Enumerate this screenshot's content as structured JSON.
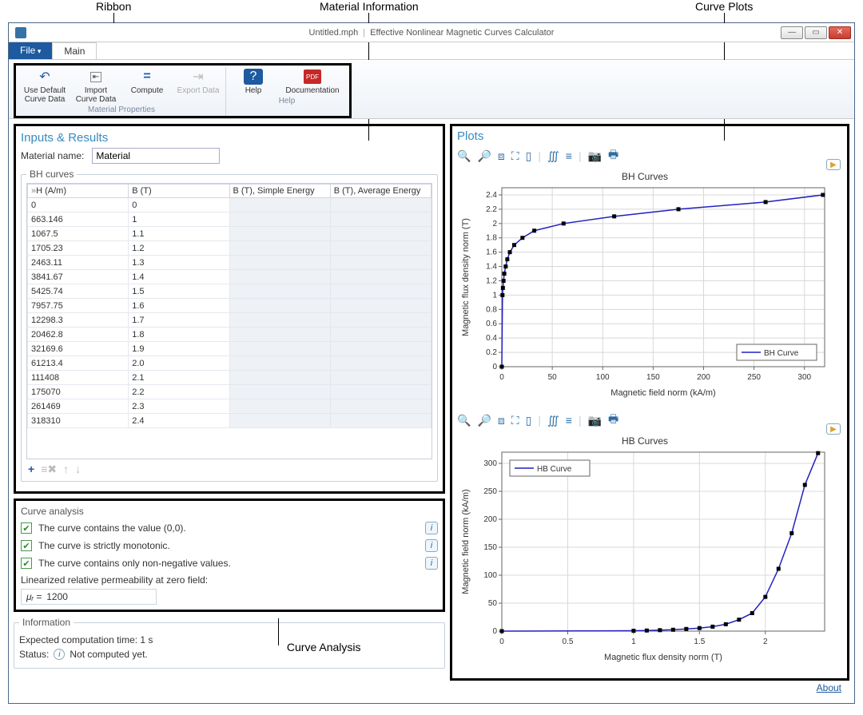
{
  "callouts": {
    "ribbon": "Ribbon",
    "material_info": "Material Information",
    "curve_plots": "Curve Plots",
    "curve_analysis": "Curve Analysis"
  },
  "window": {
    "file_tab": "File",
    "main_tab": "Main",
    "doc_name": "Untitled.mph",
    "app_title": "Effective Nonlinear Magnetic Curves Calculator"
  },
  "ribbon": {
    "use_default": "Use Default Curve Data",
    "import": "Import Curve Data",
    "compute": "Compute",
    "export": "Export Data",
    "help": "Help",
    "documentation": "Documentation",
    "group_mat": "Material Properties",
    "group_help": "Help"
  },
  "inputs": {
    "title": "Inputs & Results",
    "material_label": "Material name:",
    "material_value": "Material",
    "bh_group": "BH curves",
    "columns": [
      "H (A/m)",
      "B (T)",
      "B (T), Simple Energy",
      "B (T), Average Energy"
    ],
    "rows": [
      [
        "0",
        "0"
      ],
      [
        "663.146",
        "1"
      ],
      [
        "1067.5",
        "1.1"
      ],
      [
        "1705.23",
        "1.2"
      ],
      [
        "2463.11",
        "1.3"
      ],
      [
        "3841.67",
        "1.4"
      ],
      [
        "5425.74",
        "1.5"
      ],
      [
        "7957.75",
        "1.6"
      ],
      [
        "12298.3",
        "1.7"
      ],
      [
        "20462.8",
        "1.8"
      ],
      [
        "32169.6",
        "1.9"
      ],
      [
        "61213.4",
        "2.0"
      ],
      [
        "111408",
        "2.1"
      ],
      [
        "175070",
        "2.2"
      ],
      [
        "261469",
        "2.3"
      ],
      [
        "318310",
        "2.4"
      ]
    ]
  },
  "analysis": {
    "group": "Curve analysis",
    "check1": "The curve contains the value (0,0).",
    "check2": "The curve is strictly monotonic.",
    "check3": "The curve contains only non-negative values.",
    "lin_label": "Linearized relative permeability at zero field:",
    "mu_symbol": "μᵣ =",
    "mu_value": "1200"
  },
  "info": {
    "group": "Information",
    "time_label": "Expected computation time: 1 s",
    "status_label": "Status:",
    "status_value": "Not computed yet."
  },
  "plots": {
    "title": "Plots",
    "bh": {
      "title": "BH Curves",
      "xlabel": "Magnetic field norm (kA/m)",
      "ylabel": "Magnetic flux density norm (T)",
      "legend": "BH Curve",
      "line_color": "#2020c0",
      "marker_color": "#000000",
      "grid_color": "#d8d8d8",
      "axis_color": "#666666",
      "text_color": "#333333",
      "background": "#ffffff",
      "xlim": [
        0,
        320
      ],
      "ylim": [
        0,
        2.5
      ],
      "xticks": [
        0,
        50,
        100,
        150,
        200,
        250,
        300
      ],
      "yticks": [
        0,
        0.2,
        0.4,
        0.6,
        0.8,
        1,
        1.2,
        1.4,
        1.6,
        1.8,
        2,
        2.2,
        2.4
      ],
      "data": [
        [
          0,
          0
        ],
        [
          0.663,
          1
        ],
        [
          1.068,
          1.1
        ],
        [
          1.705,
          1.2
        ],
        [
          2.463,
          1.3
        ],
        [
          3.842,
          1.4
        ],
        [
          5.426,
          1.5
        ],
        [
          7.958,
          1.6
        ],
        [
          12.298,
          1.7
        ],
        [
          20.463,
          1.8
        ],
        [
          32.17,
          1.9
        ],
        [
          61.213,
          2.0
        ],
        [
          111.408,
          2.1
        ],
        [
          175.07,
          2.2
        ],
        [
          261.469,
          2.3
        ],
        [
          318.31,
          2.4
        ]
      ]
    },
    "hb": {
      "title": "HB Curves",
      "xlabel": "Magnetic flux density norm (T)",
      "ylabel": "Magnetic field norm (kA/m)",
      "legend": "HB Curve",
      "line_color": "#2020c0",
      "marker_color": "#000000",
      "grid_color": "#d8d8d8",
      "axis_color": "#666666",
      "text_color": "#333333",
      "background": "#ffffff",
      "xlim": [
        0,
        2.45
      ],
      "ylim": [
        0,
        320
      ],
      "xticks": [
        0,
        0.5,
        1,
        1.5,
        2
      ],
      "yticks": [
        0,
        50,
        100,
        150,
        200,
        250,
        300
      ],
      "data": [
        [
          0,
          0
        ],
        [
          1,
          0.663
        ],
        [
          1.1,
          1.068
        ],
        [
          1.2,
          1.705
        ],
        [
          1.3,
          2.463
        ],
        [
          1.4,
          3.842
        ],
        [
          1.5,
          5.426
        ],
        [
          1.6,
          7.958
        ],
        [
          1.7,
          12.298
        ],
        [
          1.8,
          20.463
        ],
        [
          1.9,
          32.17
        ],
        [
          2.0,
          61.213
        ],
        [
          2.1,
          111.408
        ],
        [
          2.2,
          175.07
        ],
        [
          2.3,
          261.469
        ],
        [
          2.4,
          318.31
        ]
      ]
    }
  },
  "about": "About"
}
